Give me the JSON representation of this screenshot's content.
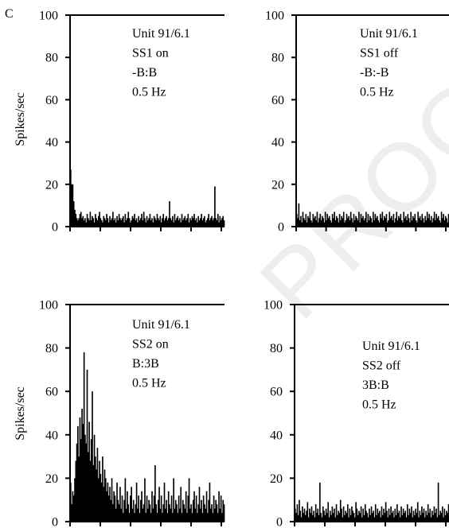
{
  "panel_label": "C",
  "watermark": "PROOF",
  "y_axis_label": "Spikes/sec",
  "chart_data": [
    {
      "type": "bar",
      "annotation": [
        "Unit 91/6.1",
        "SS1 on",
        "-B:B",
        "0.5 Hz"
      ],
      "ylim": [
        0,
        100
      ],
      "yticks": [
        0,
        20,
        40,
        60,
        80,
        100
      ],
      "ylabel": "Spikes/sec",
      "onset_peak": 27,
      "values": [
        27,
        20,
        20,
        12,
        8,
        6,
        4,
        3,
        4,
        6,
        7,
        4,
        5,
        3,
        4,
        2,
        6,
        4,
        3,
        7,
        3,
        5,
        4,
        2,
        6,
        4,
        3,
        5,
        7,
        4,
        3,
        2,
        5,
        4,
        3,
        6,
        4,
        2,
        5,
        3,
        4,
        7,
        3,
        4,
        2,
        5,
        3,
        6,
        4,
        3,
        4,
        5,
        2,
        6,
        3,
        4,
        7,
        4,
        2,
        3,
        5,
        4,
        6,
        3,
        4,
        2,
        5,
        3,
        4,
        6,
        3,
        7,
        4,
        2,
        5,
        3,
        4,
        6,
        3,
        4,
        2,
        5,
        4,
        3,
        6,
        4,
        3,
        5,
        2,
        4,
        6,
        3,
        4,
        5,
        3,
        4,
        12,
        4,
        3,
        5,
        2,
        6,
        3,
        4,
        5,
        3,
        4,
        2,
        6,
        3,
        4,
        5,
        3,
        4,
        6,
        2,
        4,
        3,
        5,
        4,
        6,
        3,
        4,
        2,
        5,
        3,
        4,
        6,
        3,
        4,
        5,
        2,
        3,
        4,
        6,
        3,
        4,
        5,
        3,
        4,
        19,
        4,
        3,
        6,
        2,
        5,
        3,
        4,
        5,
        3
      ]
    },
    {
      "type": "bar",
      "annotation": [
        "Unit 91/6.1",
        "SS1 off",
        "-B:-B",
        "0.5 Hz"
      ],
      "ylim": [
        0,
        100
      ],
      "yticks": [
        0,
        20,
        40,
        60,
        80,
        100
      ],
      "ylabel": "",
      "values": [
        6,
        4,
        11,
        3,
        5,
        2,
        7,
        4,
        3,
        6,
        2,
        5,
        4,
        7,
        3,
        2,
        6,
        4,
        5,
        3,
        7,
        2,
        4,
        6,
        3,
        5,
        4,
        2,
        7,
        3,
        6,
        4,
        5,
        3,
        2,
        6,
        4,
        7,
        3,
        5,
        4,
        2,
        6,
        3,
        5,
        4,
        7,
        2,
        3,
        6,
        4,
        5,
        3,
        7,
        4,
        2,
        6,
        3,
        5,
        4,
        3,
        7,
        2,
        6,
        4,
        5,
        3,
        4,
        7,
        2,
        6,
        3,
        5,
        4,
        2,
        7,
        3,
        6,
        4,
        5,
        3,
        2,
        6,
        4,
        7,
        3,
        5,
        4,
        6,
        2,
        3,
        7,
        4,
        5,
        3,
        6,
        2,
        4,
        7,
        3,
        5,
        4,
        6,
        3,
        2,
        7,
        4,
        5,
        3,
        6,
        4,
        2,
        7,
        3,
        5,
        4,
        6,
        3,
        2,
        7,
        4,
        5,
        3,
        6,
        4,
        2,
        5,
        3,
        7,
        4,
        6,
        3,
        5,
        2,
        4,
        7,
        3,
        6,
        4,
        5,
        3,
        2,
        7,
        4,
        6,
        3,
        5,
        4,
        2,
        6
      ]
    },
    {
      "type": "bar",
      "annotation": [
        "Unit 91/6.1",
        "SS2 on",
        "B:3B",
        "0.5 Hz"
      ],
      "ylim": [
        0,
        100
      ],
      "yticks": [
        0,
        20,
        40,
        60,
        80,
        100
      ],
      "ylabel": "Spikes/sec",
      "values": [
        18,
        8,
        14,
        12,
        20,
        28,
        36,
        44,
        30,
        48,
        38,
        52,
        45,
        78,
        40,
        36,
        70,
        32,
        46,
        28,
        38,
        60,
        26,
        40,
        30,
        24,
        34,
        20,
        28,
        22,
        18,
        30,
        16,
        24,
        20,
        14,
        18,
        12,
        16,
        10,
        20,
        8,
        14,
        12,
        6,
        18,
        10,
        8,
        16,
        6,
        12,
        4,
        10,
        20,
        6,
        14,
        8,
        4,
        12,
        16,
        6,
        10,
        4,
        8,
        18,
        6,
        12,
        4,
        10,
        14,
        6,
        8,
        20,
        4,
        12,
        6,
        10,
        8,
        4,
        14,
        6,
        12,
        26,
        8,
        4,
        10,
        16,
        6,
        12,
        4,
        8,
        18,
        6,
        10,
        4,
        14,
        8,
        6,
        12,
        4,
        20,
        6,
        10,
        8,
        4,
        12,
        6,
        16,
        4,
        10,
        8,
        6,
        14,
        4,
        12,
        20,
        6,
        8,
        4,
        10,
        14,
        6,
        12,
        4,
        8,
        16,
        6,
        10,
        4,
        12,
        8,
        6,
        14,
        4,
        10,
        18,
        6,
        8,
        4,
        12,
        6,
        10,
        8,
        4,
        14,
        6,
        12,
        4,
        10,
        8
      ]
    },
    {
      "type": "bar",
      "annotation": [
        "Unit 91/6.1",
        "SS2 off",
        "3B:B",
        "0.5 Hz"
      ],
      "ylim": [
        0,
        100
      ],
      "yticks": [
        0,
        20,
        40,
        60,
        80,
        100
      ],
      "ylabel": "",
      "values": [
        6,
        4,
        8,
        3,
        10,
        5,
        2,
        7,
        4,
        6,
        3,
        5,
        9,
        2,
        6,
        4,
        7,
        3,
        5,
        2,
        8,
        4,
        6,
        3,
        18,
        4,
        2,
        7,
        5,
        3,
        6,
        4,
        9,
        2,
        5,
        3,
        7,
        4,
        6,
        2,
        8,
        3,
        5,
        4,
        10,
        6,
        2,
        7,
        3,
        5,
        4,
        8,
        2,
        6,
        3,
        7,
        5,
        4,
        2,
        9,
        6,
        3,
        5,
        4,
        7,
        2,
        6,
        3,
        8,
        5,
        4,
        2,
        6,
        3,
        7,
        4,
        5,
        2,
        8,
        3,
        6,
        4,
        5,
        2,
        7,
        3,
        6,
        4,
        9,
        5,
        2,
        6,
        3,
        7,
        4,
        5,
        2,
        6,
        3,
        8,
        4,
        5,
        2,
        7,
        3,
        6,
        4,
        5,
        2,
        8,
        3,
        6,
        4,
        7,
        2,
        5,
        3,
        6,
        4,
        9,
        2,
        5,
        3,
        7,
        4,
        6,
        2,
        5,
        3,
        8,
        4,
        6,
        2,
        5,
        3,
        7,
        4,
        6,
        2,
        18,
        3,
        5,
        4,
        7,
        2,
        6,
        3,
        5,
        4,
        8
      ]
    }
  ]
}
